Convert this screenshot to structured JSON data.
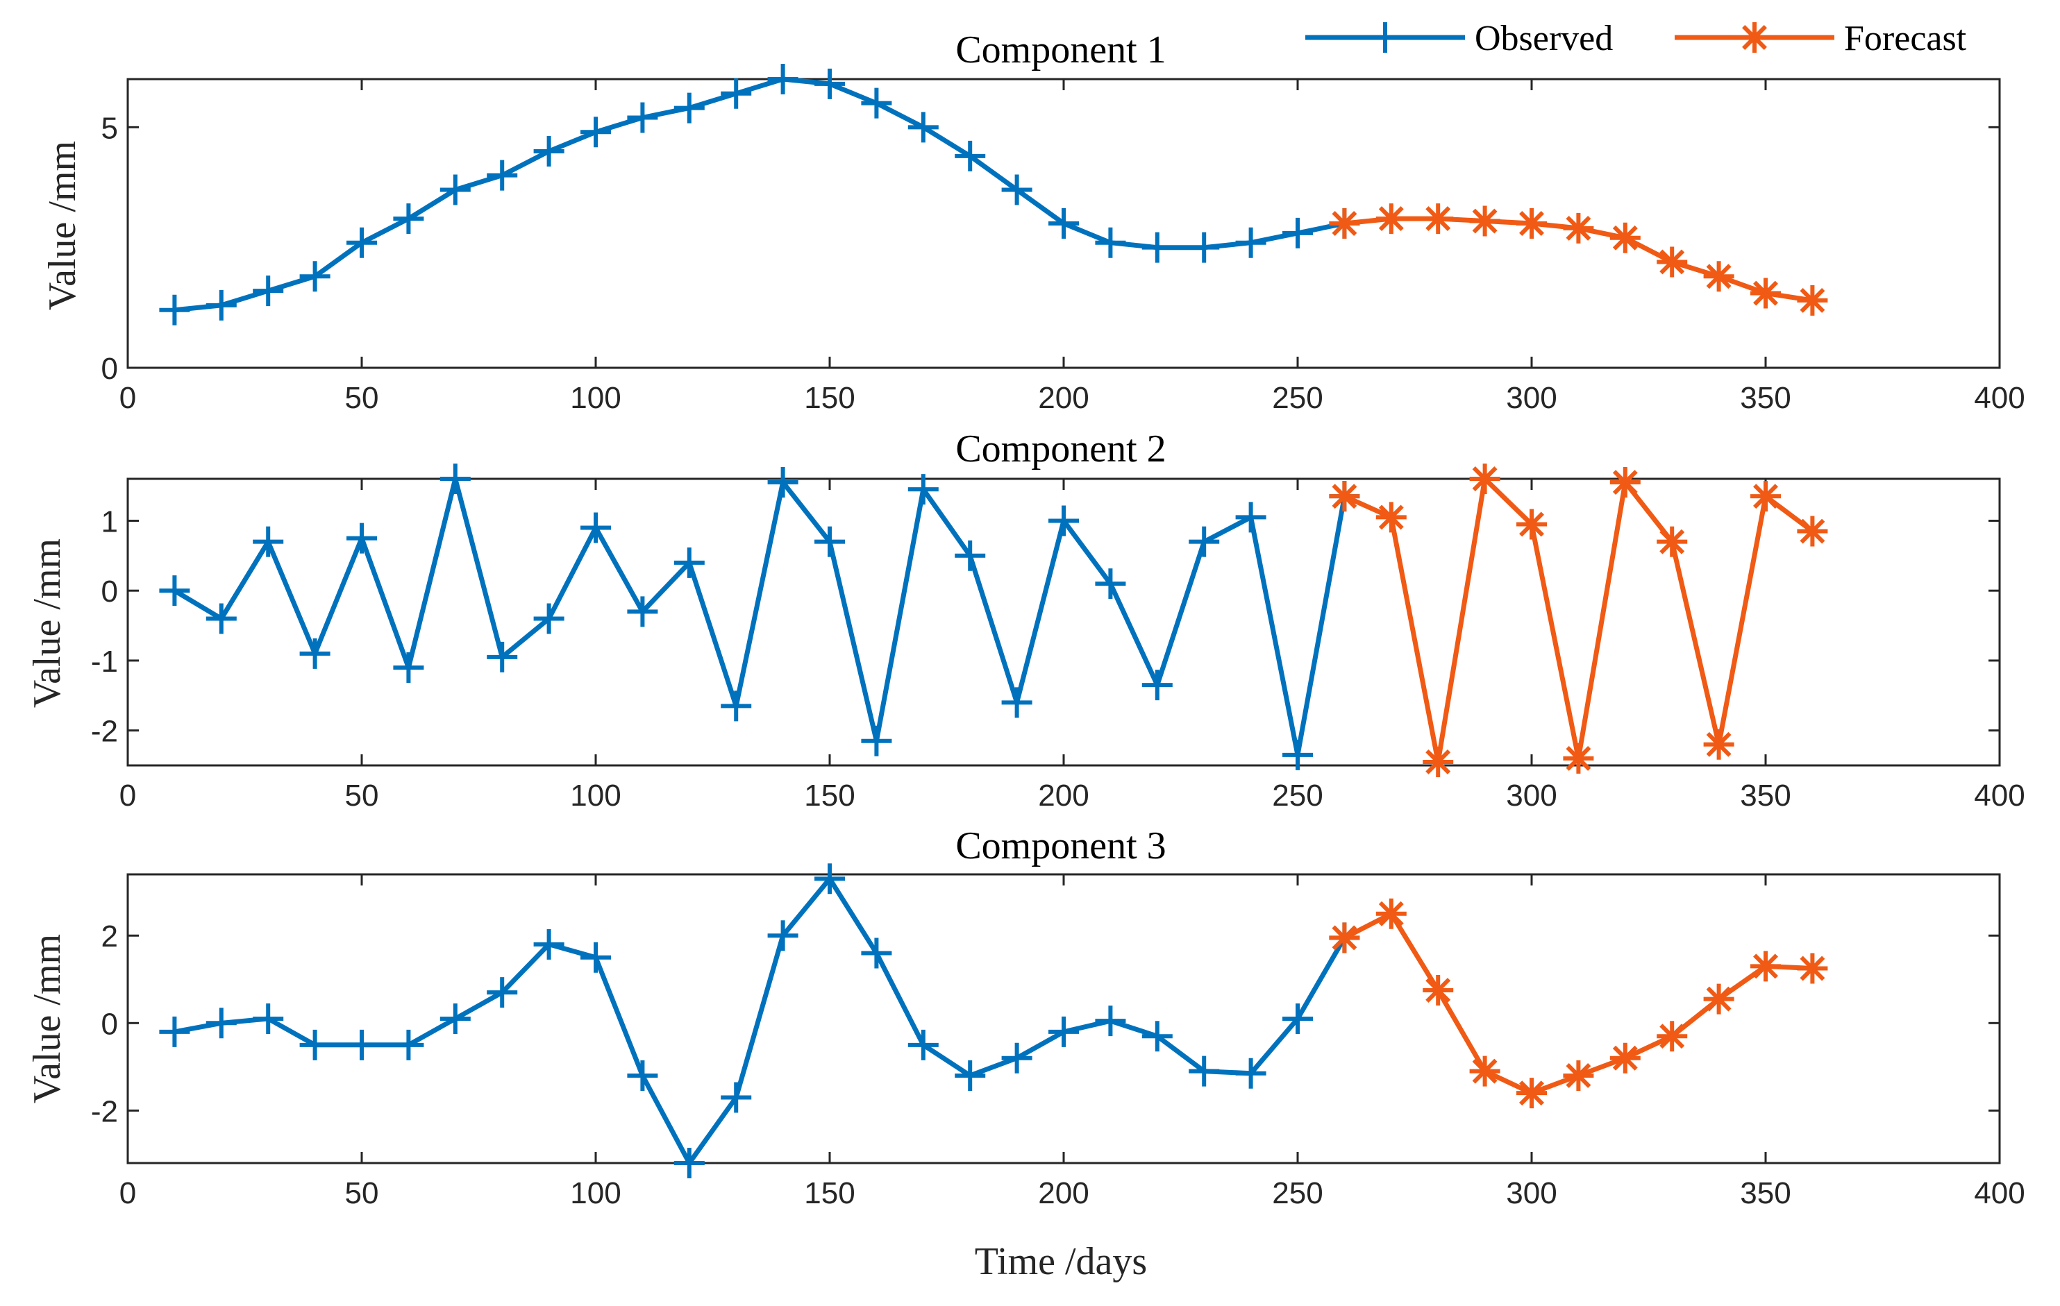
{
  "colors": {
    "observed": "#0072BD",
    "forecast": "#F05A14",
    "axis": "#262626"
  },
  "legend": {
    "observed_label": "Observed",
    "forecast_label": "Forecast",
    "observed_marker": "plus",
    "forecast_marker": "asterisk"
  },
  "chart_data": [
    {
      "type": "line",
      "title": "Component 1",
      "xlabel": "",
      "ylabel": "Value /mm",
      "xlim": [
        0,
        400
      ],
      "ylim": [
        0,
        6
      ],
      "xticks": [
        0,
        50,
        100,
        150,
        200,
        250,
        300,
        350,
        400
      ],
      "yticks": [
        0,
        5
      ],
      "ytick_labels": [
        "0",
        "5"
      ],
      "series": [
        {
          "name": "Observed",
          "x": [
            10,
            20,
            30,
            40,
            50,
            60,
            70,
            80,
            90,
            100,
            110,
            120,
            130,
            140,
            150,
            160,
            170,
            180,
            190,
            200,
            210,
            220,
            230,
            240,
            250,
            260
          ],
          "values": [
            1.2,
            1.3,
            1.6,
            1.9,
            2.6,
            3.1,
            3.7,
            4.0,
            4.5,
            4.9,
            5.2,
            5.4,
            5.7,
            6.0,
            5.9,
            5.5,
            5.0,
            4.4,
            3.7,
            3.0,
            2.6,
            2.5,
            2.5,
            2.6,
            2.8,
            3.0
          ]
        },
        {
          "name": "Forecast",
          "x": [
            260,
            270,
            280,
            290,
            300,
            310,
            320,
            330,
            340,
            350,
            360
          ],
          "values": [
            3.0,
            3.1,
            3.1,
            3.05,
            3.0,
            2.9,
            2.7,
            2.2,
            1.9,
            1.55,
            1.4
          ]
        }
      ]
    },
    {
      "type": "line",
      "title": "Component 2",
      "xlabel": "",
      "ylabel": "Value /mm",
      "xlim": [
        0,
        400
      ],
      "ylim": [
        -2.5,
        1.6
      ],
      "xticks": [
        0,
        50,
        100,
        150,
        200,
        250,
        300,
        350,
        400
      ],
      "yticks": [
        -2,
        -1,
        0,
        1
      ],
      "ytick_labels": [
        "-2",
        "-1",
        "0",
        "1"
      ],
      "series": [
        {
          "name": "Observed",
          "x": [
            10,
            20,
            30,
            40,
            50,
            60,
            70,
            80,
            90,
            100,
            110,
            120,
            130,
            140,
            150,
            160,
            170,
            180,
            190,
            200,
            210,
            220,
            230,
            240,
            250,
            260
          ],
          "values": [
            0.0,
            -0.4,
            0.7,
            -0.9,
            0.75,
            -1.1,
            1.6,
            -0.95,
            -0.4,
            0.9,
            -0.3,
            0.4,
            -1.65,
            1.55,
            0.7,
            -2.15,
            1.45,
            0.5,
            -1.6,
            1.0,
            0.1,
            -1.35,
            0.7,
            1.05,
            -2.35,
            1.35
          ]
        },
        {
          "name": "Forecast",
          "x": [
            260,
            270,
            280,
            290,
            300,
            310,
            320,
            330,
            340,
            350,
            360
          ],
          "values": [
            1.35,
            1.05,
            -2.45,
            1.6,
            0.95,
            -2.4,
            1.55,
            0.7,
            -2.2,
            1.35,
            0.85
          ]
        }
      ]
    },
    {
      "type": "line",
      "title": "Component 3",
      "xlabel": "Time /days",
      "ylabel": "Value /mm",
      "xlim": [
        0,
        400
      ],
      "ylim": [
        -3.2,
        3.4
      ],
      "xticks": [
        0,
        50,
        100,
        150,
        200,
        250,
        300,
        350,
        400
      ],
      "yticks": [
        -2,
        0,
        2
      ],
      "ytick_labels": [
        "-2",
        "0",
        "2"
      ],
      "series": [
        {
          "name": "Observed",
          "x": [
            10,
            20,
            30,
            40,
            50,
            60,
            70,
            80,
            90,
            100,
            110,
            120,
            130,
            140,
            150,
            160,
            170,
            180,
            190,
            200,
            210,
            220,
            230,
            240,
            250,
            260
          ],
          "values": [
            -0.2,
            0.0,
            0.1,
            -0.5,
            -0.5,
            -0.5,
            0.1,
            0.7,
            1.8,
            1.5,
            -1.2,
            -3.2,
            -1.7,
            2.0,
            3.3,
            1.6,
            -0.5,
            -1.2,
            -0.8,
            -0.2,
            0.05,
            -0.3,
            -1.1,
            -1.15,
            0.1,
            1.95
          ]
        },
        {
          "name": "Forecast",
          "x": [
            260,
            270,
            280,
            290,
            300,
            310,
            320,
            330,
            340,
            350,
            360
          ],
          "values": [
            1.95,
            2.5,
            0.75,
            -1.1,
            -1.6,
            -1.2,
            -0.8,
            -0.3,
            0.55,
            1.3,
            1.25
          ]
        }
      ]
    }
  ]
}
